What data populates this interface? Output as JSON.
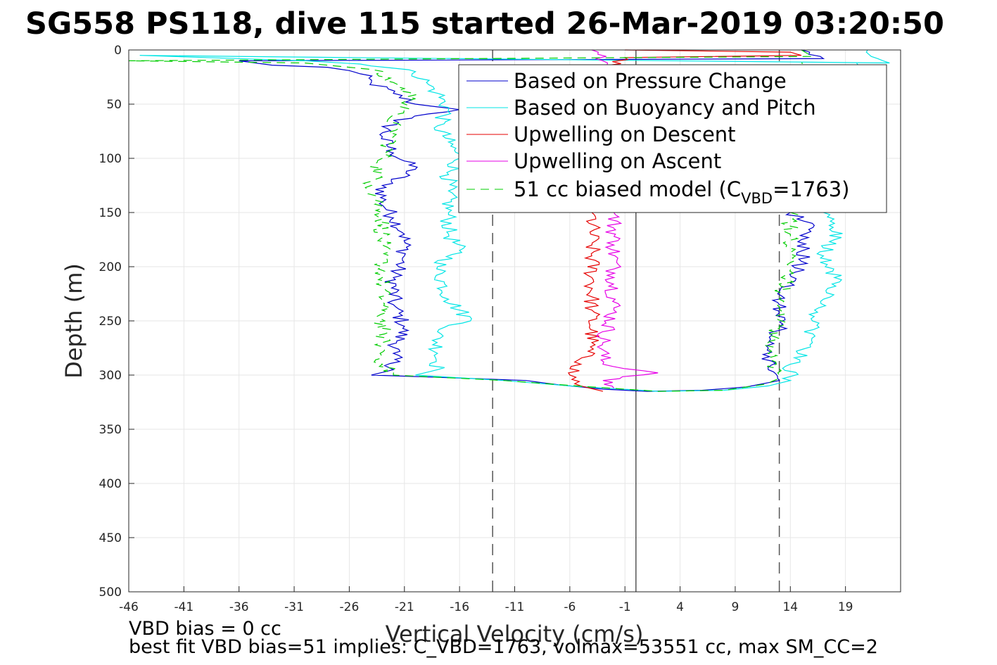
{
  "chart_data": {
    "type": "line",
    "title": "SG558 PS118, dive 115 started 26-Mar-2019 03:20:50",
    "xlabel": "Vertical Velocity (cm/s)",
    "ylabel": "Depth (m)",
    "xlim": [
      -46,
      24
    ],
    "ylim": [
      0,
      500
    ],
    "y_reversed": true,
    "xticks": [
      -46,
      -41,
      -36,
      -31,
      -26,
      -21,
      -16,
      -11,
      -6,
      -1,
      4,
      9,
      14,
      19
    ],
    "yticks": [
      0,
      50,
      100,
      150,
      200,
      250,
      300,
      350,
      400,
      450,
      500
    ],
    "grid": true,
    "legend_position": "top-right",
    "reference_lines": {
      "solid_vertical_x": 0,
      "dashed_vertical_x": [
        -13,
        13
      ]
    },
    "series": [
      {
        "name": "Based on Pressure Change",
        "color": "#0000cc",
        "style": "solid",
        "points": [
          [
            15,
            0
          ],
          [
            17,
            8
          ],
          [
            -36,
            10
          ],
          [
            -33,
            14
          ],
          [
            -28,
            16
          ],
          [
            -26,
            19
          ],
          [
            -25,
            22
          ],
          [
            -24,
            30
          ],
          [
            -22,
            40
          ],
          [
            -20,
            50
          ],
          [
            -16,
            55
          ],
          [
            -22,
            65
          ],
          [
            -23,
            80
          ],
          [
            -22,
            95
          ],
          [
            -20,
            110
          ],
          [
            -23,
            125
          ],
          [
            -23,
            140
          ],
          [
            -22,
            155
          ],
          [
            -21,
            170
          ],
          [
            -21,
            190
          ],
          [
            -22,
            210
          ],
          [
            -22,
            235
          ],
          [
            -21,
            255
          ],
          [
            -22,
            280
          ],
          [
            -22,
            295
          ],
          [
            -24,
            300
          ],
          [
            -18,
            302
          ],
          [
            -10,
            305
          ],
          [
            -7,
            309
          ],
          [
            -3,
            313
          ],
          [
            1,
            315
          ],
          [
            6,
            314
          ],
          [
            10,
            311
          ],
          [
            13,
            305
          ],
          [
            12,
            295
          ],
          [
            12,
            275
          ],
          [
            13,
            255
          ],
          [
            13,
            235
          ],
          [
            14,
            215
          ],
          [
            15,
            195
          ],
          [
            15,
            175
          ],
          [
            16,
            160
          ],
          [
            14,
            150
          ],
          [
            17,
            14
          ]
        ]
      },
      {
        "name": "Based on Buoyancy and Pitch",
        "color": "#00e5e5",
        "style": "solid",
        "points": [
          [
            21,
            0
          ],
          [
            23,
            12
          ],
          [
            -45,
            5
          ],
          [
            -30,
            10
          ],
          [
            -25,
            13
          ],
          [
            -20,
            20
          ],
          [
            -19,
            30
          ],
          [
            -18,
            40
          ],
          [
            -17,
            55
          ],
          [
            -18,
            70
          ],
          [
            -17,
            85
          ],
          [
            -16,
            100
          ],
          [
            -17,
            115
          ],
          [
            -17,
            130
          ],
          [
            -17,
            150
          ],
          [
            -17,
            170
          ],
          [
            -16,
            185
          ],
          [
            -18,
            200
          ],
          [
            -17,
            230
          ],
          [
            -15,
            250
          ],
          [
            -18,
            260
          ],
          [
            -18,
            280
          ],
          [
            -18,
            295
          ],
          [
            -20,
            300
          ],
          [
            -12,
            305
          ],
          [
            -6,
            310
          ],
          [
            2,
            315
          ],
          [
            8,
            314
          ],
          [
            12,
            310
          ],
          [
            14,
            305
          ],
          [
            14,
            290
          ],
          [
            16,
            270
          ],
          [
            16,
            250
          ],
          [
            17,
            230
          ],
          [
            18,
            210
          ],
          [
            17,
            190
          ],
          [
            18,
            175
          ],
          [
            18,
            160
          ],
          [
            17,
            150
          ],
          [
            20,
            12
          ]
        ]
      },
      {
        "name": "Upwelling on Descent",
        "color": "#e60000",
        "style": "solid",
        "points": [
          [
            -1,
            0
          ],
          [
            14,
            2
          ],
          [
            15,
            5
          ],
          [
            -1,
            7
          ],
          [
            -3,
            20
          ],
          [
            -4,
            150
          ],
          [
            -4,
            180
          ],
          [
            -4,
            210
          ],
          [
            -4,
            240
          ],
          [
            -4,
            270
          ],
          [
            -5,
            290
          ],
          [
            -6,
            300
          ],
          [
            -5,
            310
          ],
          [
            -3,
            315
          ]
        ]
      },
      {
        "name": "Upwelling on Ascent",
        "color": "#e600e6",
        "style": "solid",
        "points": [
          [
            -4,
            0
          ],
          [
            -3,
            10
          ],
          [
            -2,
            20
          ],
          [
            -2,
            150
          ],
          [
            -2,
            180
          ],
          [
            -2,
            210
          ],
          [
            -2,
            240
          ],
          [
            -3,
            270
          ],
          [
            -3,
            290
          ],
          [
            2,
            298
          ],
          [
            -3,
            305
          ],
          [
            -2,
            312
          ]
        ]
      },
      {
        "name": "51 cc biased model (C_VBD=1763)",
        "color": "#00cc00",
        "style": "dashed",
        "points": [
          [
            15,
            0
          ],
          [
            16,
            6
          ],
          [
            -46,
            10
          ],
          [
            -30,
            12
          ],
          [
            -24,
            18
          ],
          [
            -22,
            30
          ],
          [
            -20,
            45
          ],
          [
            -22,
            60
          ],
          [
            -22,
            80
          ],
          [
            -23,
            100
          ],
          [
            -24,
            125
          ],
          [
            -23,
            150
          ],
          [
            -23,
            180
          ],
          [
            -23,
            210
          ],
          [
            -23,
            240
          ],
          [
            -23,
            270
          ],
          [
            -23,
            290
          ],
          [
            -22,
            300
          ],
          [
            -12,
            305
          ],
          [
            -4,
            311
          ],
          [
            2,
            315
          ],
          [
            8,
            314
          ],
          [
            12,
            308
          ],
          [
            13,
            300
          ],
          [
            12,
            280
          ],
          [
            13,
            255
          ],
          [
            13,
            230
          ],
          [
            14,
            200
          ],
          [
            14,
            170
          ],
          [
            14,
            150
          ],
          [
            15,
            12
          ]
        ]
      }
    ]
  },
  "legend": {
    "entries": [
      {
        "label": "Based on Pressure Change"
      },
      {
        "label": "Based on Buoyancy and Pitch"
      },
      {
        "label": "Upwelling on Descent"
      },
      {
        "label": "Upwelling on Ascent"
      },
      {
        "label_prefix": "51 cc biased model (C",
        "label_sub": "VBD",
        "label_suffix": "=1763)"
      }
    ]
  },
  "footer": {
    "line1": "VBD bias = 0 cc",
    "line2": "best fit VBD bias=51 implies: C_VBD=1763, volmax=53551 cc, max SM_CC=2"
  }
}
